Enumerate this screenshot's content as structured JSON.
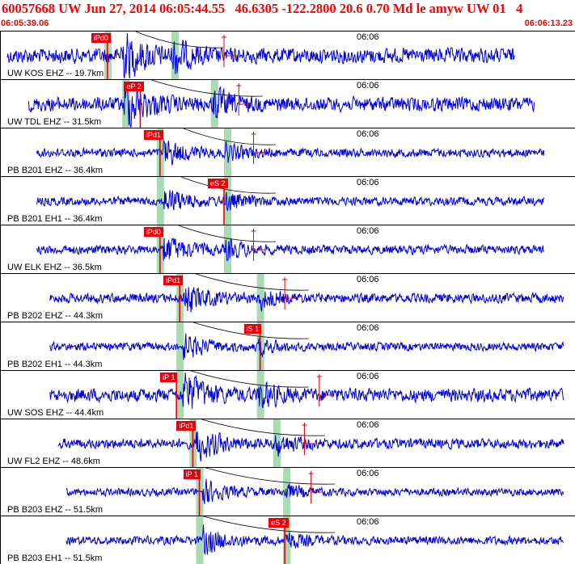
{
  "header": {
    "title": "60057668 UW Jun 27, 2014 06:05:44.55   46.6305 -122.2800 20.6 0.70 Md le amyw UW 01   4",
    "start_time": "06:05:39.06",
    "end_time": "06:06:13.23"
  },
  "colors": {
    "trace": "#0000dd",
    "pick": "#e8000b",
    "window": "#a8dcb0",
    "text": "#000000",
    "header_text": "#ff0000"
  },
  "panels": [
    {
      "label": "UW KOS EHZ -- 19.7km",
      "tick": "06:06",
      "pick_label": "iPd0",
      "amp": 1.0,
      "trace_start_s": 0.0,
      "trace_end_s": 31.0,
      "p_s": 6.2,
      "s_s": 10.3,
      "pick_s": 6.2,
      "onset_s": 7.0,
      "secondary_s": 13.3
    },
    {
      "label": "UW TDL EHZ -- 31.5km",
      "tick": "06:06",
      "pick_label": "eP 2",
      "amp": 0.9,
      "trace_start_s": 1.3,
      "trace_end_s": 32.2,
      "p_s": 7.3,
      "s_s": 12.7,
      "pick_s": 8.2,
      "onset_s": 7.2,
      "secondary_s": 14.2
    },
    {
      "label": "PB B201 EHZ -- 36.4km",
      "tick": "06:06",
      "pick_label": "iPd1",
      "amp": 0.35,
      "trace_start_s": 1.8,
      "trace_end_s": 32.8,
      "p_s": 9.4,
      "s_s": 13.5,
      "pick_s": 9.4,
      "onset_s": 9.6,
      "secondary_s": 15.1
    },
    {
      "label": "PB B201 EH1 -- 36.4km",
      "tick": "06:06",
      "pick_label": "eS 2",
      "amp": 0.35,
      "trace_start_s": 1.8,
      "trace_end_s": 32.8,
      "p_s": 9.4,
      "s_s": 13.5,
      "pick_s": 13.3,
      "onset_s": 9.6,
      "secondary_s": 0
    },
    {
      "label": "UW ELK EHZ -- 36.5km",
      "tick": "06:06",
      "pick_label": "iPd0",
      "amp": 0.4,
      "trace_start_s": 1.8,
      "trace_end_s": 32.8,
      "p_s": 9.4,
      "s_s": 13.5,
      "pick_s": 9.4,
      "onset_s": 9.6,
      "secondary_s": 15.1
    },
    {
      "label": "PB B202 EHZ -- 44.3km",
      "tick": "06:06",
      "pick_label": "iPd1",
      "amp": 0.45,
      "trace_start_s": 2.6,
      "trace_end_s": 34.0,
      "p_s": 10.6,
      "s_s": 15.5,
      "pick_s": 10.6,
      "onset_s": 10.8,
      "secondary_s": 17.0
    },
    {
      "label": "PB B202 EH1 -- 44.3km",
      "tick": "06:06",
      "pick_label": "iS 1",
      "amp": 0.3,
      "trace_start_s": 2.6,
      "trace_end_s": 34.0,
      "p_s": 10.6,
      "s_s": 15.5,
      "pick_s": 15.5,
      "onset_s": 10.8,
      "secondary_s": 0
    },
    {
      "label": "UW SOS EHZ -- 44.4km",
      "tick": "06:06",
      "pick_label": "iP 1",
      "amp": 0.8,
      "trace_start_s": 2.6,
      "trace_end_s": 34.0,
      "p_s": 10.6,
      "s_s": 15.5,
      "pick_s": 10.4,
      "onset_s": 10.8,
      "secondary_s": 19.1
    },
    {
      "label": "UW FL2 EHZ -- 48.6km",
      "tick": "06:06",
      "pick_label": "iPd1",
      "amp": 0.5,
      "trace_start_s": 3.1,
      "trace_end_s": 34.0,
      "p_s": 11.4,
      "s_s": 16.5,
      "pick_s": 11.4,
      "onset_s": 11.6,
      "secondary_s": 18.2
    },
    {
      "label": "PB B203 EHZ -- 51.5km",
      "tick": "06:06",
      "pick_label": "iP 1",
      "amp": 0.25,
      "trace_start_s": 3.6,
      "trace_end_s": 34.0,
      "p_s": 11.8,
      "s_s": 17.1,
      "pick_s": 11.8,
      "onset_s": 12.0,
      "secondary_s": 18.6
    },
    {
      "label": "PB B203 EH1 -- 51.5km",
      "tick": "06:06",
      "pick_label": "eS 2",
      "amp": 0.35,
      "trace_start_s": 3.6,
      "trace_end_s": 34.0,
      "p_s": 11.8,
      "s_s": 17.1,
      "pick_s": 17.0,
      "onset_s": 12.0,
      "secondary_s": 0
    }
  ]
}
